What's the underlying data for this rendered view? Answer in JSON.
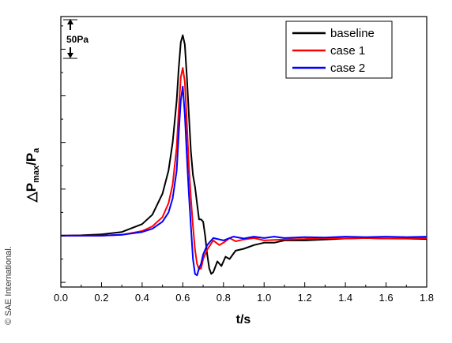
{
  "chart_data": {
    "type": "line",
    "xlabel": "t/s",
    "ylabel_main": "△P",
    "ylabel_sub1": "max",
    "ylabel_mid": "/P",
    "ylabel_sub2": "a",
    "xlim": [
      0.0,
      1.8
    ],
    "x_ticks": [
      "0.0",
      "0.2",
      "0.4",
      "0.6",
      "0.8",
      "1.0",
      "1.2",
      "1.4",
      "1.6",
      "1.8"
    ],
    "ylim": [
      -1.1,
      4.7
    ],
    "scale_bar": {
      "label": "50Pa",
      "value": 0.5
    },
    "legend_position": "top-right",
    "grid": false,
    "series": [
      {
        "name": "baseline",
        "color": "#000000",
        "points": [
          [
            0.0,
            0.0
          ],
          [
            0.1,
            0.01
          ],
          [
            0.2,
            0.03
          ],
          [
            0.3,
            0.08
          ],
          [
            0.4,
            0.25
          ],
          [
            0.45,
            0.45
          ],
          [
            0.5,
            0.9
          ],
          [
            0.53,
            1.4
          ],
          [
            0.55,
            2.0
          ],
          [
            0.57,
            2.9
          ],
          [
            0.58,
            3.6
          ],
          [
            0.59,
            4.15
          ],
          [
            0.6,
            4.3
          ],
          [
            0.61,
            4.1
          ],
          [
            0.62,
            3.4
          ],
          [
            0.63,
            2.6
          ],
          [
            0.64,
            1.8
          ],
          [
            0.65,
            1.3
          ],
          [
            0.66,
            1.05
          ],
          [
            0.67,
            0.7
          ],
          [
            0.68,
            0.35
          ],
          [
            0.69,
            0.35
          ],
          [
            0.7,
            0.3
          ],
          [
            0.71,
            0.0
          ],
          [
            0.72,
            -0.4
          ],
          [
            0.73,
            -0.7
          ],
          [
            0.74,
            -0.82
          ],
          [
            0.75,
            -0.78
          ],
          [
            0.77,
            -0.55
          ],
          [
            0.79,
            -0.65
          ],
          [
            0.81,
            -0.45
          ],
          [
            0.83,
            -0.5
          ],
          [
            0.86,
            -0.32
          ],
          [
            0.9,
            -0.28
          ],
          [
            0.95,
            -0.2
          ],
          [
            1.0,
            -0.15
          ],
          [
            1.05,
            -0.15
          ],
          [
            1.1,
            -0.1
          ],
          [
            1.2,
            -0.1
          ],
          [
            1.3,
            -0.08
          ],
          [
            1.4,
            -0.06
          ],
          [
            1.5,
            -0.05
          ],
          [
            1.6,
            -0.06
          ],
          [
            1.7,
            -0.06
          ],
          [
            1.8,
            -0.07
          ]
        ]
      },
      {
        "name": "case 1",
        "color": "#ff0000",
        "points": [
          [
            0.0,
            0.0
          ],
          [
            0.2,
            0.0
          ],
          [
            0.3,
            0.02
          ],
          [
            0.4,
            0.1
          ],
          [
            0.45,
            0.2
          ],
          [
            0.5,
            0.4
          ],
          [
            0.53,
            0.7
          ],
          [
            0.55,
            1.1
          ],
          [
            0.57,
            1.9
          ],
          [
            0.58,
            2.7
          ],
          [
            0.59,
            3.4
          ],
          [
            0.6,
            3.6
          ],
          [
            0.61,
            3.3
          ],
          [
            0.62,
            2.4
          ],
          [
            0.63,
            1.5
          ],
          [
            0.64,
            0.8
          ],
          [
            0.65,
            0.2
          ],
          [
            0.66,
            -0.3
          ],
          [
            0.67,
            -0.6
          ],
          [
            0.68,
            -0.72
          ],
          [
            0.69,
            -0.7
          ],
          [
            0.7,
            -0.5
          ],
          [
            0.72,
            -0.3
          ],
          [
            0.75,
            -0.1
          ],
          [
            0.78,
            -0.2
          ],
          [
            0.8,
            -0.15
          ],
          [
            0.83,
            -0.05
          ],
          [
            0.86,
            -0.12
          ],
          [
            0.9,
            -0.08
          ],
          [
            0.95,
            -0.05
          ],
          [
            1.0,
            -0.1
          ],
          [
            1.1,
            -0.08
          ],
          [
            1.2,
            -0.07
          ],
          [
            1.3,
            -0.05
          ],
          [
            1.4,
            -0.06
          ],
          [
            1.5,
            -0.05
          ],
          [
            1.6,
            -0.06
          ],
          [
            1.7,
            -0.05
          ],
          [
            1.8,
            -0.05
          ]
        ]
      },
      {
        "name": "case 2",
        "color": "#0000ff",
        "points": [
          [
            0.0,
            0.0
          ],
          [
            0.2,
            0.0
          ],
          [
            0.3,
            0.02
          ],
          [
            0.4,
            0.08
          ],
          [
            0.45,
            0.15
          ],
          [
            0.5,
            0.3
          ],
          [
            0.53,
            0.5
          ],
          [
            0.55,
            0.8
          ],
          [
            0.57,
            1.4
          ],
          [
            0.58,
            2.2
          ],
          [
            0.59,
            2.9
          ],
          [
            0.6,
            3.2
          ],
          [
            0.61,
            2.6
          ],
          [
            0.62,
            1.7
          ],
          [
            0.63,
            0.9
          ],
          [
            0.64,
            0.2
          ],
          [
            0.65,
            -0.5
          ],
          [
            0.66,
            -0.82
          ],
          [
            0.67,
            -0.85
          ],
          [
            0.68,
            -0.7
          ],
          [
            0.69,
            -0.6
          ],
          [
            0.7,
            -0.4
          ],
          [
            0.72,
            -0.2
          ],
          [
            0.75,
            -0.05
          ],
          [
            0.8,
            -0.1
          ],
          [
            0.85,
            -0.02
          ],
          [
            0.9,
            -0.06
          ],
          [
            0.95,
            -0.02
          ],
          [
            1.0,
            -0.05
          ],
          [
            1.05,
            -0.02
          ],
          [
            1.1,
            -0.05
          ],
          [
            1.2,
            -0.03
          ],
          [
            1.3,
            -0.04
          ],
          [
            1.4,
            -0.02
          ],
          [
            1.5,
            -0.03
          ],
          [
            1.6,
            -0.02
          ],
          [
            1.7,
            -0.03
          ],
          [
            1.8,
            -0.02
          ]
        ]
      }
    ]
  },
  "credit": "© SAE International."
}
